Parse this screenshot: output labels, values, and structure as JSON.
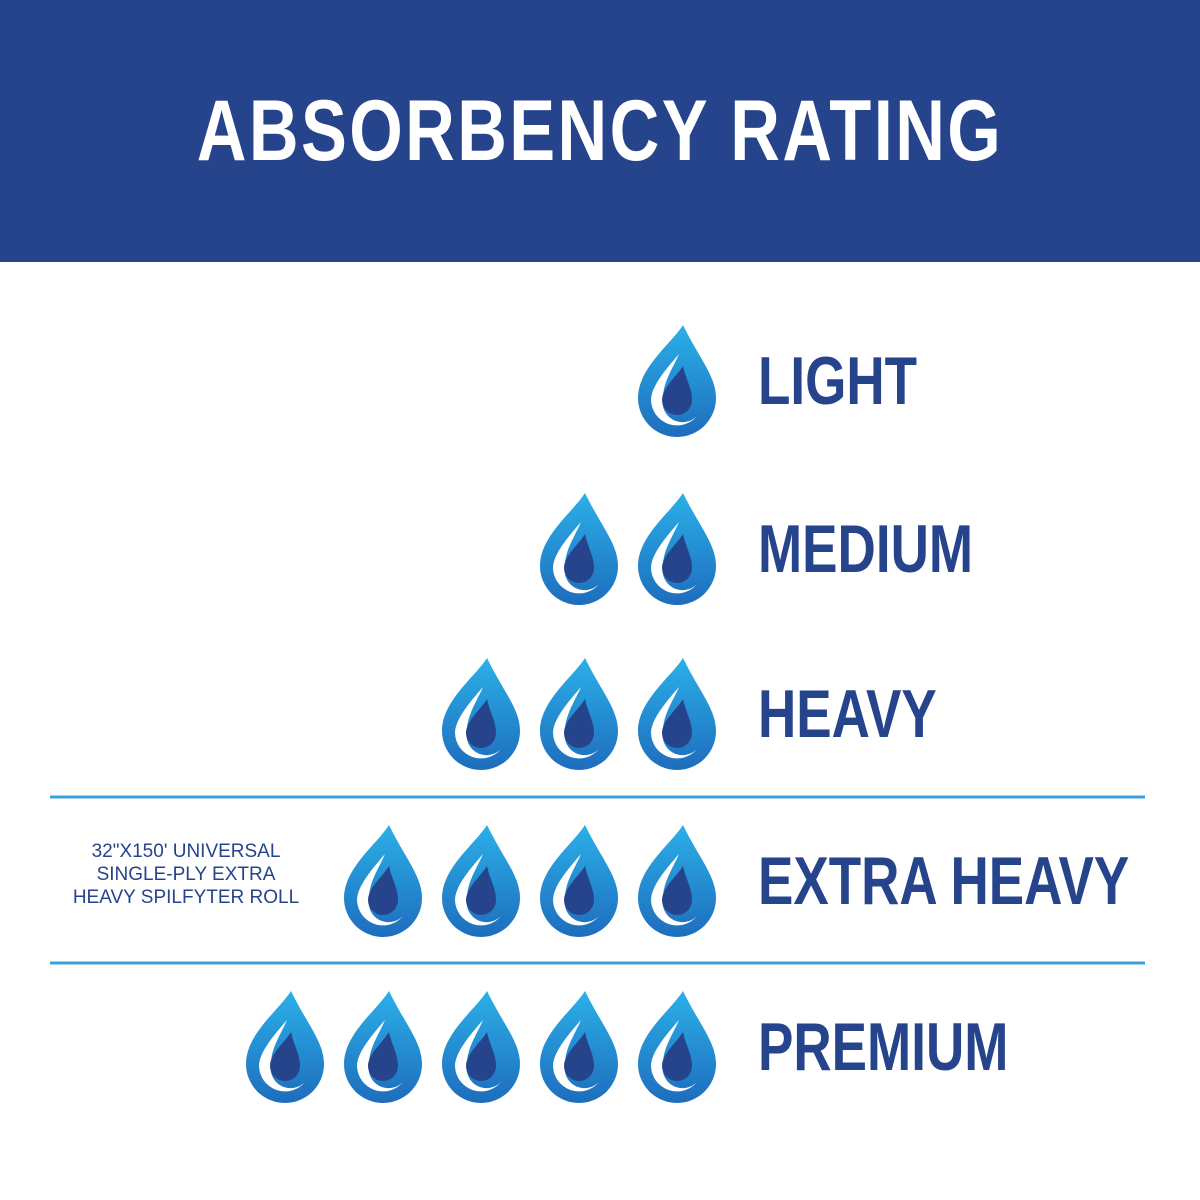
{
  "header": {
    "title": "ABSORBENCY RATING"
  },
  "levels": [
    {
      "label": "LIGHT",
      "drops": 1
    },
    {
      "label": "MEDIUM",
      "drops": 2
    },
    {
      "label": "HEAVY",
      "drops": 3
    },
    {
      "label": "EXTRA HEAVY",
      "drops": 4
    },
    {
      "label": "PREMIUM",
      "drops": 5
    }
  ],
  "note": {
    "lines": [
      "32\"X150' UNIVERSAL",
      "SINGLE-PLY EXTRA",
      "HEAVY SPILFYTER ROLL"
    ]
  }
}
